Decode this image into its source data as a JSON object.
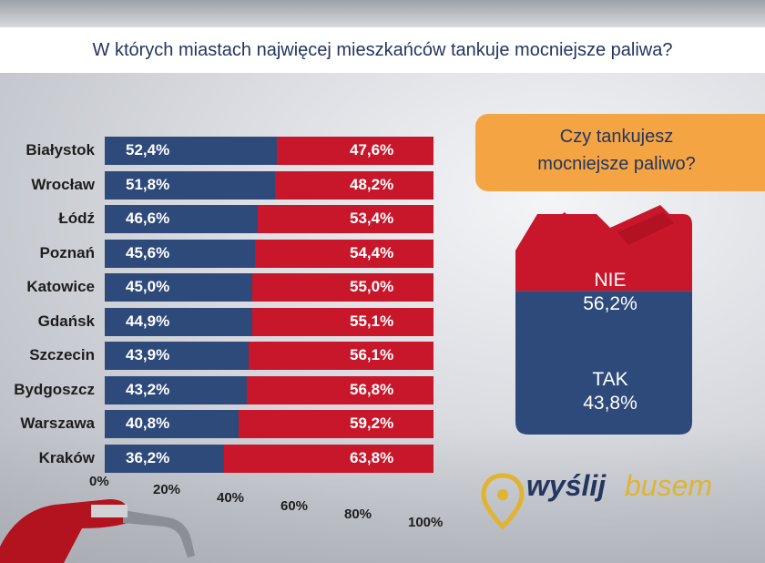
{
  "title": "W których miastach najwięcej mieszkańców tankuje mocniejsze paliwa?",
  "question": {
    "line1": "Czy tankujesz",
    "line2": "mocniejsze paliwo?"
  },
  "chart_data": [
    {
      "type": "bar",
      "stacked": true,
      "orientation": "horizontal",
      "categories": [
        "Białystok",
        "Wrocław",
        "Łódź",
        "Poznań",
        "Katowice",
        "Gdańsk",
        "Szczecin",
        "Bydgoszcz",
        "Warszawa",
        "Kraków"
      ],
      "series": [
        {
          "values": [
            52.4,
            51.8,
            46.6,
            45.6,
            45.0,
            44.9,
            43.9,
            43.2,
            40.8,
            36.2
          ],
          "color": "#2e4a7b",
          "labels": [
            "52,4%",
            "51,8%",
            "46,6%",
            "45,6%",
            "45,0%",
            "44,9%",
            "43,9%",
            "43,2%",
            "40,8%",
            "36,2%"
          ]
        },
        {
          "values": [
            47.6,
            48.2,
            53.4,
            54.4,
            55.0,
            55.1,
            56.1,
            56.8,
            59.2,
            63.8
          ],
          "color": "#c8162a",
          "labels": [
            "47,6%",
            "48,2%",
            "53,4%",
            "54,4%",
            "55,0%",
            "55,1%",
            "56,1%",
            "56,8%",
            "59,2%",
            "63,8%"
          ]
        }
      ],
      "xlim": [
        0,
        100
      ],
      "xticks": [
        "0%",
        "20%",
        "40%",
        "60%",
        "80%",
        "100%"
      ]
    },
    {
      "type": "bar",
      "stacked": true,
      "categories": [
        "Czy tankujesz mocniejsze paliwo?"
      ],
      "series": [
        {
          "name": "NIE",
          "values": [
            56.2
          ],
          "label": "56,2%",
          "color": "#c8162a"
        },
        {
          "name": "TAK",
          "values": [
            43.8
          ],
          "label": "43,8%",
          "color": "#2e4a7b"
        }
      ]
    }
  ],
  "logo": {
    "part1": "wyślij",
    "part2": "busem"
  }
}
